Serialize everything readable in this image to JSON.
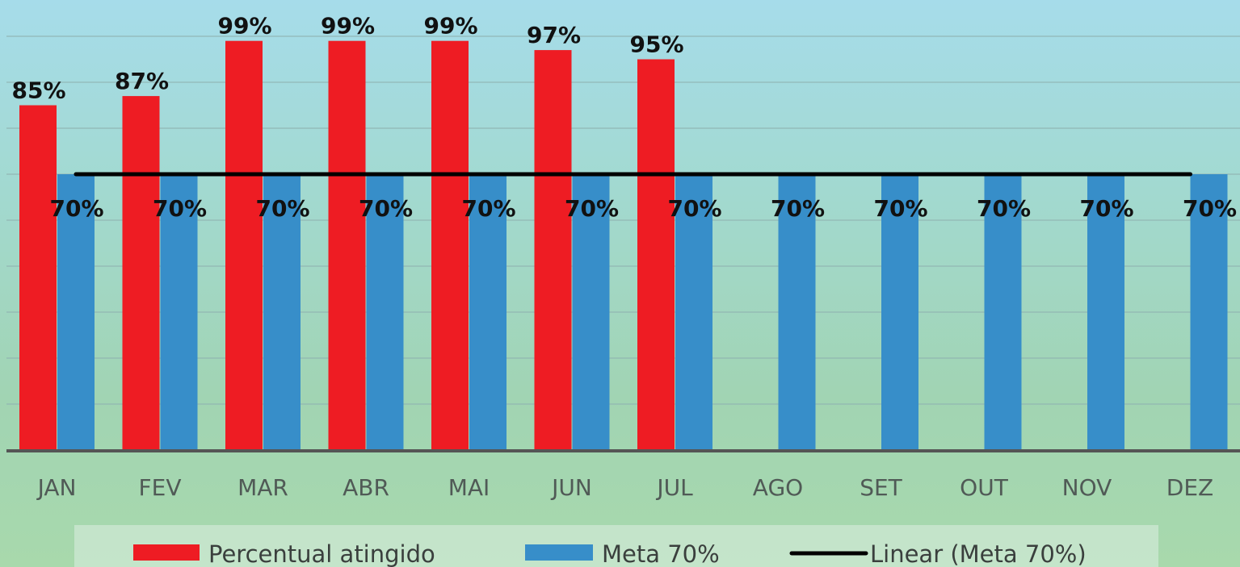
{
  "chart_data": {
    "type": "bar",
    "categories": [
      "JAN",
      "FEV",
      "MAR",
      "ABR",
      "MAI",
      "JUN",
      "JUL",
      "AGO",
      "SET",
      "OUT",
      "NOV",
      "DEZ"
    ],
    "series": [
      {
        "name": "Percentual atingido",
        "color": "#ee1c23",
        "values": [
          85,
          87,
          99,
          99,
          99,
          97,
          95,
          null,
          null,
          null,
          null,
          null
        ],
        "labels": [
          "85%",
          "87%",
          "99%",
          "99%",
          "99%",
          "97%",
          "95%",
          null,
          null,
          null,
          null,
          null
        ]
      },
      {
        "name": "Meta 70%",
        "color": "#378ec9",
        "values": [
          70,
          70,
          70,
          70,
          70,
          70,
          70,
          70,
          70,
          70,
          70,
          70
        ],
        "labels": [
          "70%",
          "70%",
          "70%",
          "70%",
          "70%",
          "70%",
          "70%",
          "70%",
          "70%",
          "70%",
          "70%",
          "70%"
        ]
      }
    ],
    "trendline": {
      "name": "Linear (Meta 70%)",
      "color": "#000000",
      "value": 70
    },
    "ylim": [
      10,
      100
    ],
    "grid": true,
    "legend_position": "bottom"
  }
}
